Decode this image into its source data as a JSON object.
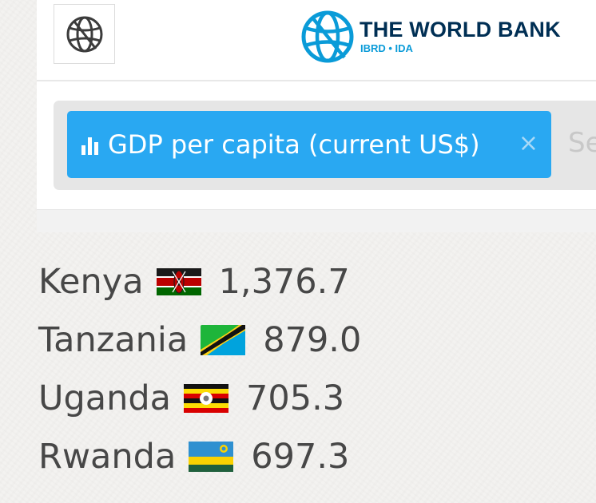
{
  "header": {
    "brand_name": "THE WORLD BANK",
    "brand_sub": "IBRD • IDA",
    "icons": [
      "globe-icon",
      "world-bank-logo"
    ]
  },
  "search": {
    "chip_label": "GDP per capita (current US$)",
    "chip_close": "×",
    "placeholder": "Se"
  },
  "countries": [
    {
      "name": "Kenya",
      "value": "1,376.7",
      "flag": "kenya-flag"
    },
    {
      "name": "Tanzania",
      "value": "879.0",
      "flag": "tanzania-flag"
    },
    {
      "name": "Uganda",
      "value": "705.3",
      "flag": "uganda-flag"
    },
    {
      "name": "Rwanda",
      "value": "697.3",
      "flag": "rwanda-flag"
    }
  ],
  "colors": {
    "chip": "#29a8f2",
    "brand_navy": "#002f54",
    "brand_cyan": "#0a9bd8",
    "text": "#474747"
  }
}
